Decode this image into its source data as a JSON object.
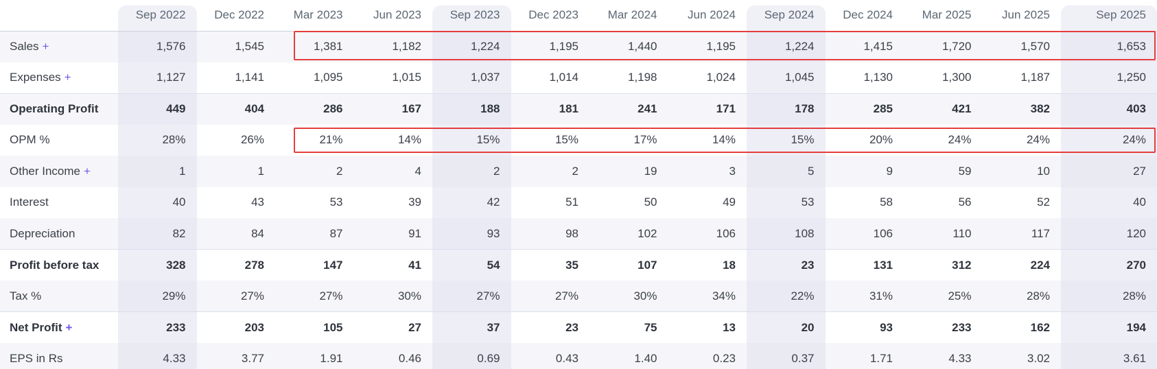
{
  "table": {
    "name": "quarterly-results-table",
    "corner_header": "",
    "columns": [
      "Sep 2022",
      "Dec 2022",
      "Mar 2023",
      "Jun 2023",
      "Sep 2023",
      "Dec 2023",
      "Mar 2024",
      "Jun 2024",
      "Sep 2024",
      "Dec 2024",
      "Mar 2025",
      "Jun 2025",
      "Sep 2025"
    ],
    "highlighted_columns": [
      "Sep 2022",
      "Sep 2023",
      "Sep 2024",
      "Sep 2025"
    ],
    "expand_symbol": "+",
    "rows": [
      {
        "label": "Sales",
        "expandable": true,
        "bold": false,
        "values": [
          "1,576",
          "1,545",
          "1,381",
          "1,182",
          "1,224",
          "1,195",
          "1,440",
          "1,195",
          "1,224",
          "1,415",
          "1,720",
          "1,570",
          "1,653"
        ]
      },
      {
        "label": "Expenses",
        "expandable": true,
        "bold": false,
        "values": [
          "1,127",
          "1,141",
          "1,095",
          "1,015",
          "1,037",
          "1,014",
          "1,198",
          "1,024",
          "1,045",
          "1,130",
          "1,300",
          "1,187",
          "1,250"
        ]
      },
      {
        "label": "Operating Profit",
        "expandable": false,
        "bold": true,
        "values": [
          "449",
          "404",
          "286",
          "167",
          "188",
          "181",
          "241",
          "171",
          "178",
          "285",
          "421",
          "382",
          "403"
        ]
      },
      {
        "label": "OPM %",
        "expandable": false,
        "bold": false,
        "values": [
          "28%",
          "26%",
          "21%",
          "14%",
          "15%",
          "15%",
          "17%",
          "14%",
          "15%",
          "20%",
          "24%",
          "24%",
          "24%"
        ]
      },
      {
        "label": "Other Income",
        "expandable": true,
        "bold": false,
        "values": [
          "1",
          "1",
          "2",
          "4",
          "2",
          "2",
          "19",
          "3",
          "5",
          "9",
          "59",
          "10",
          "27"
        ]
      },
      {
        "label": "Interest",
        "expandable": false,
        "bold": false,
        "values": [
          "40",
          "43",
          "53",
          "39",
          "42",
          "51",
          "50",
          "49",
          "53",
          "58",
          "56",
          "52",
          "40"
        ]
      },
      {
        "label": "Depreciation",
        "expandable": false,
        "bold": false,
        "values": [
          "82",
          "84",
          "87",
          "91",
          "93",
          "98",
          "102",
          "106",
          "108",
          "106",
          "110",
          "117",
          "120"
        ]
      },
      {
        "label": "Profit before tax",
        "expandable": false,
        "bold": true,
        "values": [
          "328",
          "278",
          "147",
          "41",
          "54",
          "35",
          "107",
          "18",
          "23",
          "131",
          "312",
          "224",
          "270"
        ]
      },
      {
        "label": "Tax %",
        "expandable": false,
        "bold": false,
        "values": [
          "29%",
          "27%",
          "27%",
          "30%",
          "27%",
          "27%",
          "30%",
          "34%",
          "22%",
          "31%",
          "25%",
          "28%",
          "28%"
        ]
      },
      {
        "label": "Net Profit",
        "expandable": true,
        "bold": true,
        "values": [
          "233",
          "203",
          "105",
          "27",
          "37",
          "23",
          "75",
          "13",
          "20",
          "93",
          "233",
          "162",
          "194"
        ]
      },
      {
        "label": "EPS in Rs",
        "expandable": false,
        "bold": false,
        "values": [
          "4.33",
          "3.77",
          "1.91",
          "0.46",
          "0.69",
          "0.43",
          "1.40",
          "0.23",
          "0.37",
          "1.71",
          "4.33",
          "3.02",
          "3.61"
        ]
      }
    ],
    "annotations": [
      {
        "name": "sales-highlight-box",
        "row": "Sales",
        "from_column": "Mar 2023",
        "to_column": "Sep 2025",
        "color": "#e53d3d"
      },
      {
        "name": "opm-highlight-box",
        "row": "OPM %",
        "from_column": "Mar 2023",
        "to_column": "Sep 2025",
        "color": "#e53d3d"
      }
    ],
    "colors": {
      "row_stripe": "#f6f6fa",
      "column_stripe": "#f0f0f7",
      "header_text": "#5b6773",
      "body_text": "#3b4048",
      "expand_plus": "#6a5be8",
      "annotation_red": "#e53d3d",
      "header_border": "#ccd1d8",
      "strong_row_border": "#d9dfea"
    }
  }
}
